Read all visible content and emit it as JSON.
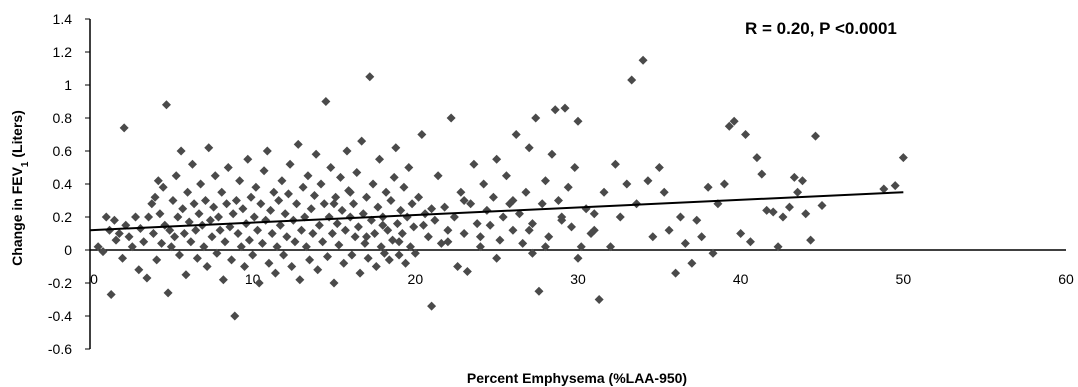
{
  "chart_data": {
    "type": "scatter",
    "title": "",
    "xlabel": "Percent Emphysema (%LAA-950)",
    "ylabel": {
      "before": "Change in FEV",
      "sub": "1",
      "after": " (Liters)"
    },
    "annotation": "R = 0.20, P <0.0001",
    "xlim": [
      0,
      60
    ],
    "ylim": [
      -0.6,
      1.4
    ],
    "xticks": [
      "0",
      "10",
      "20",
      "30",
      "40",
      "50",
      "60"
    ],
    "yticks": [
      "-0.6",
      "-0.4",
      "-0.2",
      "0",
      "0.2",
      "0.4",
      "0.6",
      "0.8",
      "1",
      "1.2",
      "1.4"
    ],
    "grid": false,
    "marker": "diamond",
    "marker_color": "#4a4a4a",
    "trendline": {
      "x": [
        0,
        50
      ],
      "y": [
        0.12,
        0.35
      ]
    },
    "points": [
      [
        0.5,
        0.02
      ],
      [
        0.8,
        -0.01
      ],
      [
        1,
        0.2
      ],
      [
        1.2,
        0.12
      ],
      [
        1.3,
        -0.27
      ],
      [
        1.5,
        0.18
      ],
      [
        1.6,
        0.06
      ],
      [
        1.8,
        0.1
      ],
      [
        2,
        -0.05
      ],
      [
        2.1,
        0.74
      ],
      [
        2.2,
        0.15
      ],
      [
        2.4,
        0.08
      ],
      [
        2.6,
        0.02
      ],
      [
        2.8,
        0.2
      ],
      [
        3,
        -0.12
      ],
      [
        3.1,
        0.13
      ],
      [
        3.3,
        0.05
      ],
      [
        3.5,
        -0.17
      ],
      [
        3.6,
        0.2
      ],
      [
        3.8,
        0.28
      ],
      [
        3.9,
        0.1
      ],
      [
        4,
        0.32
      ],
      [
        4.1,
        -0.06
      ],
      [
        4.2,
        0.42
      ],
      [
        4.3,
        0.22
      ],
      [
        4.4,
        0.04
      ],
      [
        4.5,
        0.38
      ],
      [
        4.6,
        0.15
      ],
      [
        4.7,
        0.88
      ],
      [
        4.8,
        -0.26
      ],
      [
        4.9,
        0.12
      ],
      [
        5,
        0.02
      ],
      [
        5.1,
        0.3
      ],
      [
        5.2,
        0.08
      ],
      [
        5.3,
        0.45
      ],
      [
        5.4,
        0.2
      ],
      [
        5.5,
        -0.03
      ],
      [
        5.6,
        0.6
      ],
      [
        5.7,
        0.25
      ],
      [
        5.8,
        0.1
      ],
      [
        5.9,
        -0.15
      ],
      [
        6,
        0.35
      ],
      [
        6.1,
        0.17
      ],
      [
        6.2,
        0.05
      ],
      [
        6.3,
        0.52
      ],
      [
        6.4,
        0.28
      ],
      [
        6.5,
        0.12
      ],
      [
        6.6,
        -0.05
      ],
      [
        6.7,
        0.22
      ],
      [
        6.8,
        0.4
      ],
      [
        6.9,
        0.15
      ],
      [
        7,
        0.02
      ],
      [
        7.1,
        0.3
      ],
      [
        7.2,
        -0.1
      ],
      [
        7.3,
        0.62
      ],
      [
        7.4,
        0.18
      ],
      [
        7.5,
        0.08
      ],
      [
        7.6,
        0.26
      ],
      [
        7.7,
        0.45
      ],
      [
        7.8,
        -0.02
      ],
      [
        7.9,
        0.2
      ],
      [
        8,
        0.12
      ],
      [
        8.1,
        0.35
      ],
      [
        8.2,
        -0.18
      ],
      [
        8.3,
        0.05
      ],
      [
        8.4,
        0.28
      ],
      [
        8.5,
        0.5
      ],
      [
        8.6,
        0.14
      ],
      [
        8.7,
        -0.06
      ],
      [
        8.8,
        0.22
      ],
      [
        8.9,
        -0.4
      ],
      [
        9,
        0.3
      ],
      [
        9.1,
        0.1
      ],
      [
        9.2,
        0.42
      ],
      [
        9.3,
        0.02
      ],
      [
        9.4,
        0.25
      ],
      [
        9.5,
        -0.1
      ],
      [
        9.6,
        0.16
      ],
      [
        9.7,
        0.55
      ],
      [
        9.8,
        0.06
      ],
      [
        9.9,
        0.32
      ],
      [
        10,
        -0.03
      ],
      [
        10.1,
        0.2
      ],
      [
        10.2,
        0.38
      ],
      [
        10.3,
        0.12
      ],
      [
        10.4,
        -0.2
      ],
      [
        10.5,
        0.28
      ],
      [
        10.6,
        0.04
      ],
      [
        10.7,
        0.48
      ],
      [
        10.8,
        0.18
      ],
      [
        10.9,
        0.6
      ],
      [
        11,
        -0.08
      ],
      [
        11.1,
        0.24
      ],
      [
        11.2,
        0.1
      ],
      [
        11.3,
        0.35
      ],
      [
        11.4,
        -0.14
      ],
      [
        11.5,
        0.02
      ],
      [
        11.6,
        0.3
      ],
      [
        11.7,
        0.15
      ],
      [
        11.8,
        0.42
      ],
      [
        11.9,
        -0.03
      ],
      [
        12,
        0.22
      ],
      [
        12.1,
        0.08
      ],
      [
        12.2,
        0.34
      ],
      [
        12.3,
        0.52
      ],
      [
        12.4,
        -0.1
      ],
      [
        12.5,
        0.18
      ],
      [
        12.6,
        0.05
      ],
      [
        12.7,
        0.28
      ],
      [
        12.8,
        0.64
      ],
      [
        12.9,
        -0.18
      ],
      [
        13,
        0.12
      ],
      [
        13.1,
        0.38
      ],
      [
        13.2,
        0.2
      ],
      [
        13.3,
        0.02
      ],
      [
        13.4,
        0.45
      ],
      [
        13.5,
        -0.06
      ],
      [
        13.6,
        0.25
      ],
      [
        13.7,
        0.1
      ],
      [
        13.8,
        0.33
      ],
      [
        13.9,
        0.58
      ],
      [
        14,
        -0.12
      ],
      [
        14.1,
        0.15
      ],
      [
        14.2,
        0.4
      ],
      [
        14.3,
        0.05
      ],
      [
        14.4,
        0.28
      ],
      [
        14.5,
        0.9
      ],
      [
        14.6,
        -0.04
      ],
      [
        14.7,
        0.2
      ],
      [
        14.8,
        0.5
      ],
      [
        14.9,
        0.1
      ],
      [
        15,
        -0.2
      ],
      [
        15.1,
        0.32
      ],
      [
        15.2,
        0.16
      ],
      [
        15.3,
        0.03
      ],
      [
        15.4,
        0.44
      ],
      [
        15.5,
        0.24
      ],
      [
        15.6,
        -0.08
      ],
      [
        15.7,
        0.12
      ],
      [
        15.8,
        0.6
      ],
      [
        15.9,
        0.36
      ],
      [
        16,
        0.2
      ],
      [
        16.1,
        -0.03
      ],
      [
        16.2,
        0.28
      ],
      [
        16.3,
        0.08
      ],
      [
        16.4,
        0.47
      ],
      [
        16.5,
        0.14
      ],
      [
        16.6,
        -0.14
      ],
      [
        16.7,
        0.66
      ],
      [
        16.8,
        0.22
      ],
      [
        16.9,
        0.04
      ],
      [
        17,
        0.32
      ],
      [
        17.1,
        -0.05
      ],
      [
        17.2,
        1.05
      ],
      [
        17.3,
        0.18
      ],
      [
        17.4,
        0.4
      ],
      [
        17.5,
        0.1
      ],
      [
        17.6,
        -0.1
      ],
      [
        17.7,
        0.26
      ],
      [
        17.8,
        0.55
      ],
      [
        17.9,
        0.02
      ],
      [
        18,
        0.2
      ],
      [
        18.1,
        -0.02
      ],
      [
        18.2,
        0.35
      ],
      [
        18.3,
        0.12
      ],
      [
        18.4,
        -0.06
      ],
      [
        18.5,
        0.3
      ],
      [
        18.6,
        0.06
      ],
      [
        18.7,
        0.44
      ],
      [
        18.8,
        0.62
      ],
      [
        18.9,
        0.16
      ],
      [
        19,
        -0.03
      ],
      [
        19.1,
        0.24
      ],
      [
        19.2,
        0.1
      ],
      [
        19.3,
        0.38
      ],
      [
        19.4,
        -0.08
      ],
      [
        19.5,
        0.2
      ],
      [
        19.6,
        0.5
      ],
      [
        19.7,
        0.02
      ],
      [
        19.8,
        0.28
      ],
      [
        19.9,
        0.14
      ],
      [
        20,
        -0.02
      ],
      [
        20.2,
        0.32
      ],
      [
        20.4,
        0.7
      ],
      [
        20.6,
        0.22
      ],
      [
        20.8,
        0.08
      ],
      [
        21,
        -0.34
      ],
      [
        21.2,
        0.18
      ],
      [
        21.4,
        0.45
      ],
      [
        21.6,
        0.04
      ],
      [
        21.8,
        0.26
      ],
      [
        22,
        0.12
      ],
      [
        22.2,
        0.8
      ],
      [
        22.4,
        0.2
      ],
      [
        22.6,
        -0.1
      ],
      [
        22.8,
        0.35
      ],
      [
        23,
        0.1
      ],
      [
        23.2,
        -0.13
      ],
      [
        23.4,
        0.28
      ],
      [
        23.6,
        0.52
      ],
      [
        23.8,
        0.16
      ],
      [
        24,
        0.02
      ],
      [
        24.2,
        0.4
      ],
      [
        24.4,
        0.24
      ],
      [
        24.6,
        0.15
      ],
      [
        24.8,
        0.32
      ],
      [
        25,
        0.55
      ],
      [
        25.2,
        0.06
      ],
      [
        25.4,
        0.2
      ],
      [
        25.6,
        0.45
      ],
      [
        25.8,
        0.28
      ],
      [
        26,
        0.12
      ],
      [
        26.2,
        0.7
      ],
      [
        26.4,
        0.22
      ],
      [
        26.6,
        0.04
      ],
      [
        26.8,
        0.35
      ],
      [
        27,
        0.62
      ],
      [
        27.2,
        0.16
      ],
      [
        27.4,
        0.8
      ],
      [
        27.6,
        -0.25
      ],
      [
        27.8,
        0.28
      ],
      [
        28,
        0.42
      ],
      [
        28.2,
        0.08
      ],
      [
        28.4,
        0.58
      ],
      [
        28.6,
        0.85
      ],
      [
        28.8,
        0.3
      ],
      [
        29,
        0.2
      ],
      [
        29.2,
        0.86
      ],
      [
        29.4,
        0.38
      ],
      [
        29.6,
        0.14
      ],
      [
        29.8,
        0.5
      ],
      [
        30,
        0.78
      ],
      [
        30.2,
        0.02
      ],
      [
        30.5,
        0.25
      ],
      [
        30.8,
        0.1
      ],
      [
        31,
        0.12
      ],
      [
        31.3,
        -0.3
      ],
      [
        31.6,
        0.35
      ],
      [
        32,
        0.02
      ],
      [
        32.3,
        0.52
      ],
      [
        32.6,
        0.2
      ],
      [
        33,
        0.4
      ],
      [
        33.3,
        1.03
      ],
      [
        33.6,
        0.28
      ],
      [
        34,
        1.15
      ],
      [
        34.3,
        0.42
      ],
      [
        34.6,
        0.08
      ],
      [
        35,
        0.5
      ],
      [
        35.3,
        0.35
      ],
      [
        35.6,
        0.12
      ],
      [
        36,
        -0.14
      ],
      [
        36.3,
        0.2
      ],
      [
        36.6,
        0.04
      ],
      [
        37,
        -0.08
      ],
      [
        37.3,
        0.18
      ],
      [
        37.6,
        0.08
      ],
      [
        38,
        0.38
      ],
      [
        38.3,
        -0.02
      ],
      [
        38.6,
        0.28
      ],
      [
        39,
        0.4
      ],
      [
        39.3,
        0.75
      ],
      [
        39.6,
        0.78
      ],
      [
        40,
        0.1
      ],
      [
        40.3,
        0.7
      ],
      [
        40.6,
        0.05
      ],
      [
        41,
        0.56
      ],
      [
        41.3,
        0.46
      ],
      [
        41.6,
        0.24
      ],
      [
        42,
        0.23
      ],
      [
        42.3,
        0.02
      ],
      [
        42.6,
        0.2
      ],
      [
        43,
        0.26
      ],
      [
        43.3,
        0.44
      ],
      [
        43.5,
        0.35
      ],
      [
        43.8,
        0.42
      ],
      [
        44,
        0.22
      ],
      [
        44.3,
        0.06
      ],
      [
        44.6,
        0.69
      ],
      [
        45,
        0.27
      ],
      [
        48.8,
        0.37
      ],
      [
        49.5,
        0.39
      ],
      [
        50,
        0.56
      ],
      [
        27.2,
        -0.02
      ],
      [
        28,
        0.02
      ],
      [
        30,
        -0.05
      ],
      [
        31,
        0.22
      ],
      [
        29,
        0.18
      ],
      [
        26,
        0.3
      ],
      [
        27,
        0.12
      ],
      [
        25,
        -0.05
      ],
      [
        24,
        0.08
      ],
      [
        23,
        0.3
      ],
      [
        22,
        0.05
      ],
      [
        21,
        0.25
      ],
      [
        20.5,
        0.15
      ],
      [
        19,
        0.05
      ],
      [
        18,
        0.15
      ],
      [
        17,
        0.08
      ],
      [
        16,
        0.35
      ],
      [
        15,
        0.28
      ]
    ]
  }
}
